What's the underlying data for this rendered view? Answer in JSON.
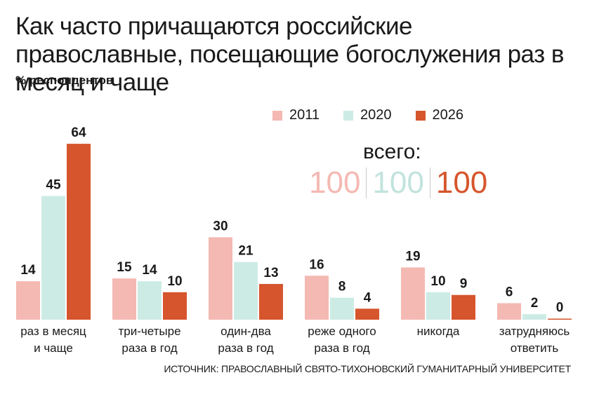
{
  "title": "Как часто причащаются российские православные, посещающие богослужения раз в месяц и чаще",
  "subtitle": "% респондентов",
  "source": "ИСТОЧНИК: ПРАВОСЛАВНЫЙ СВЯТО-ТИХОНОВСКИЙ ГУМАНИТАРНЫЙ УНИВЕРСИТЕТ",
  "totals": {
    "label": "всего:",
    "values": [
      "100",
      "100",
      "100"
    ]
  },
  "colors": {
    "2011": "#f4b9b2",
    "2020": "#cdebe5",
    "2026": "#d6552c"
  },
  "chart_data": {
    "type": "bar",
    "categories": [
      [
        "раз в месяц",
        "и чаще"
      ],
      [
        "три-четыре",
        "раза в год"
      ],
      [
        "один-два",
        "раза в год"
      ],
      [
        "реже одного",
        "раза в год"
      ],
      [
        "никогда"
      ],
      [
        "затрудняюсь",
        "ответить"
      ]
    ],
    "series": [
      {
        "name": "2011",
        "color": "#f4b9b2",
        "values": [
          14,
          15,
          30,
          16,
          19,
          6
        ]
      },
      {
        "name": "2020",
        "color": "#cdebe5",
        "values": [
          45,
          14,
          21,
          8,
          10,
          2
        ]
      },
      {
        "name": "2026",
        "color": "#d6552c",
        "values": [
          64,
          10,
          13,
          4,
          9,
          0
        ]
      }
    ],
    "ylim": [
      0,
      64
    ],
    "legend": "top-right"
  }
}
